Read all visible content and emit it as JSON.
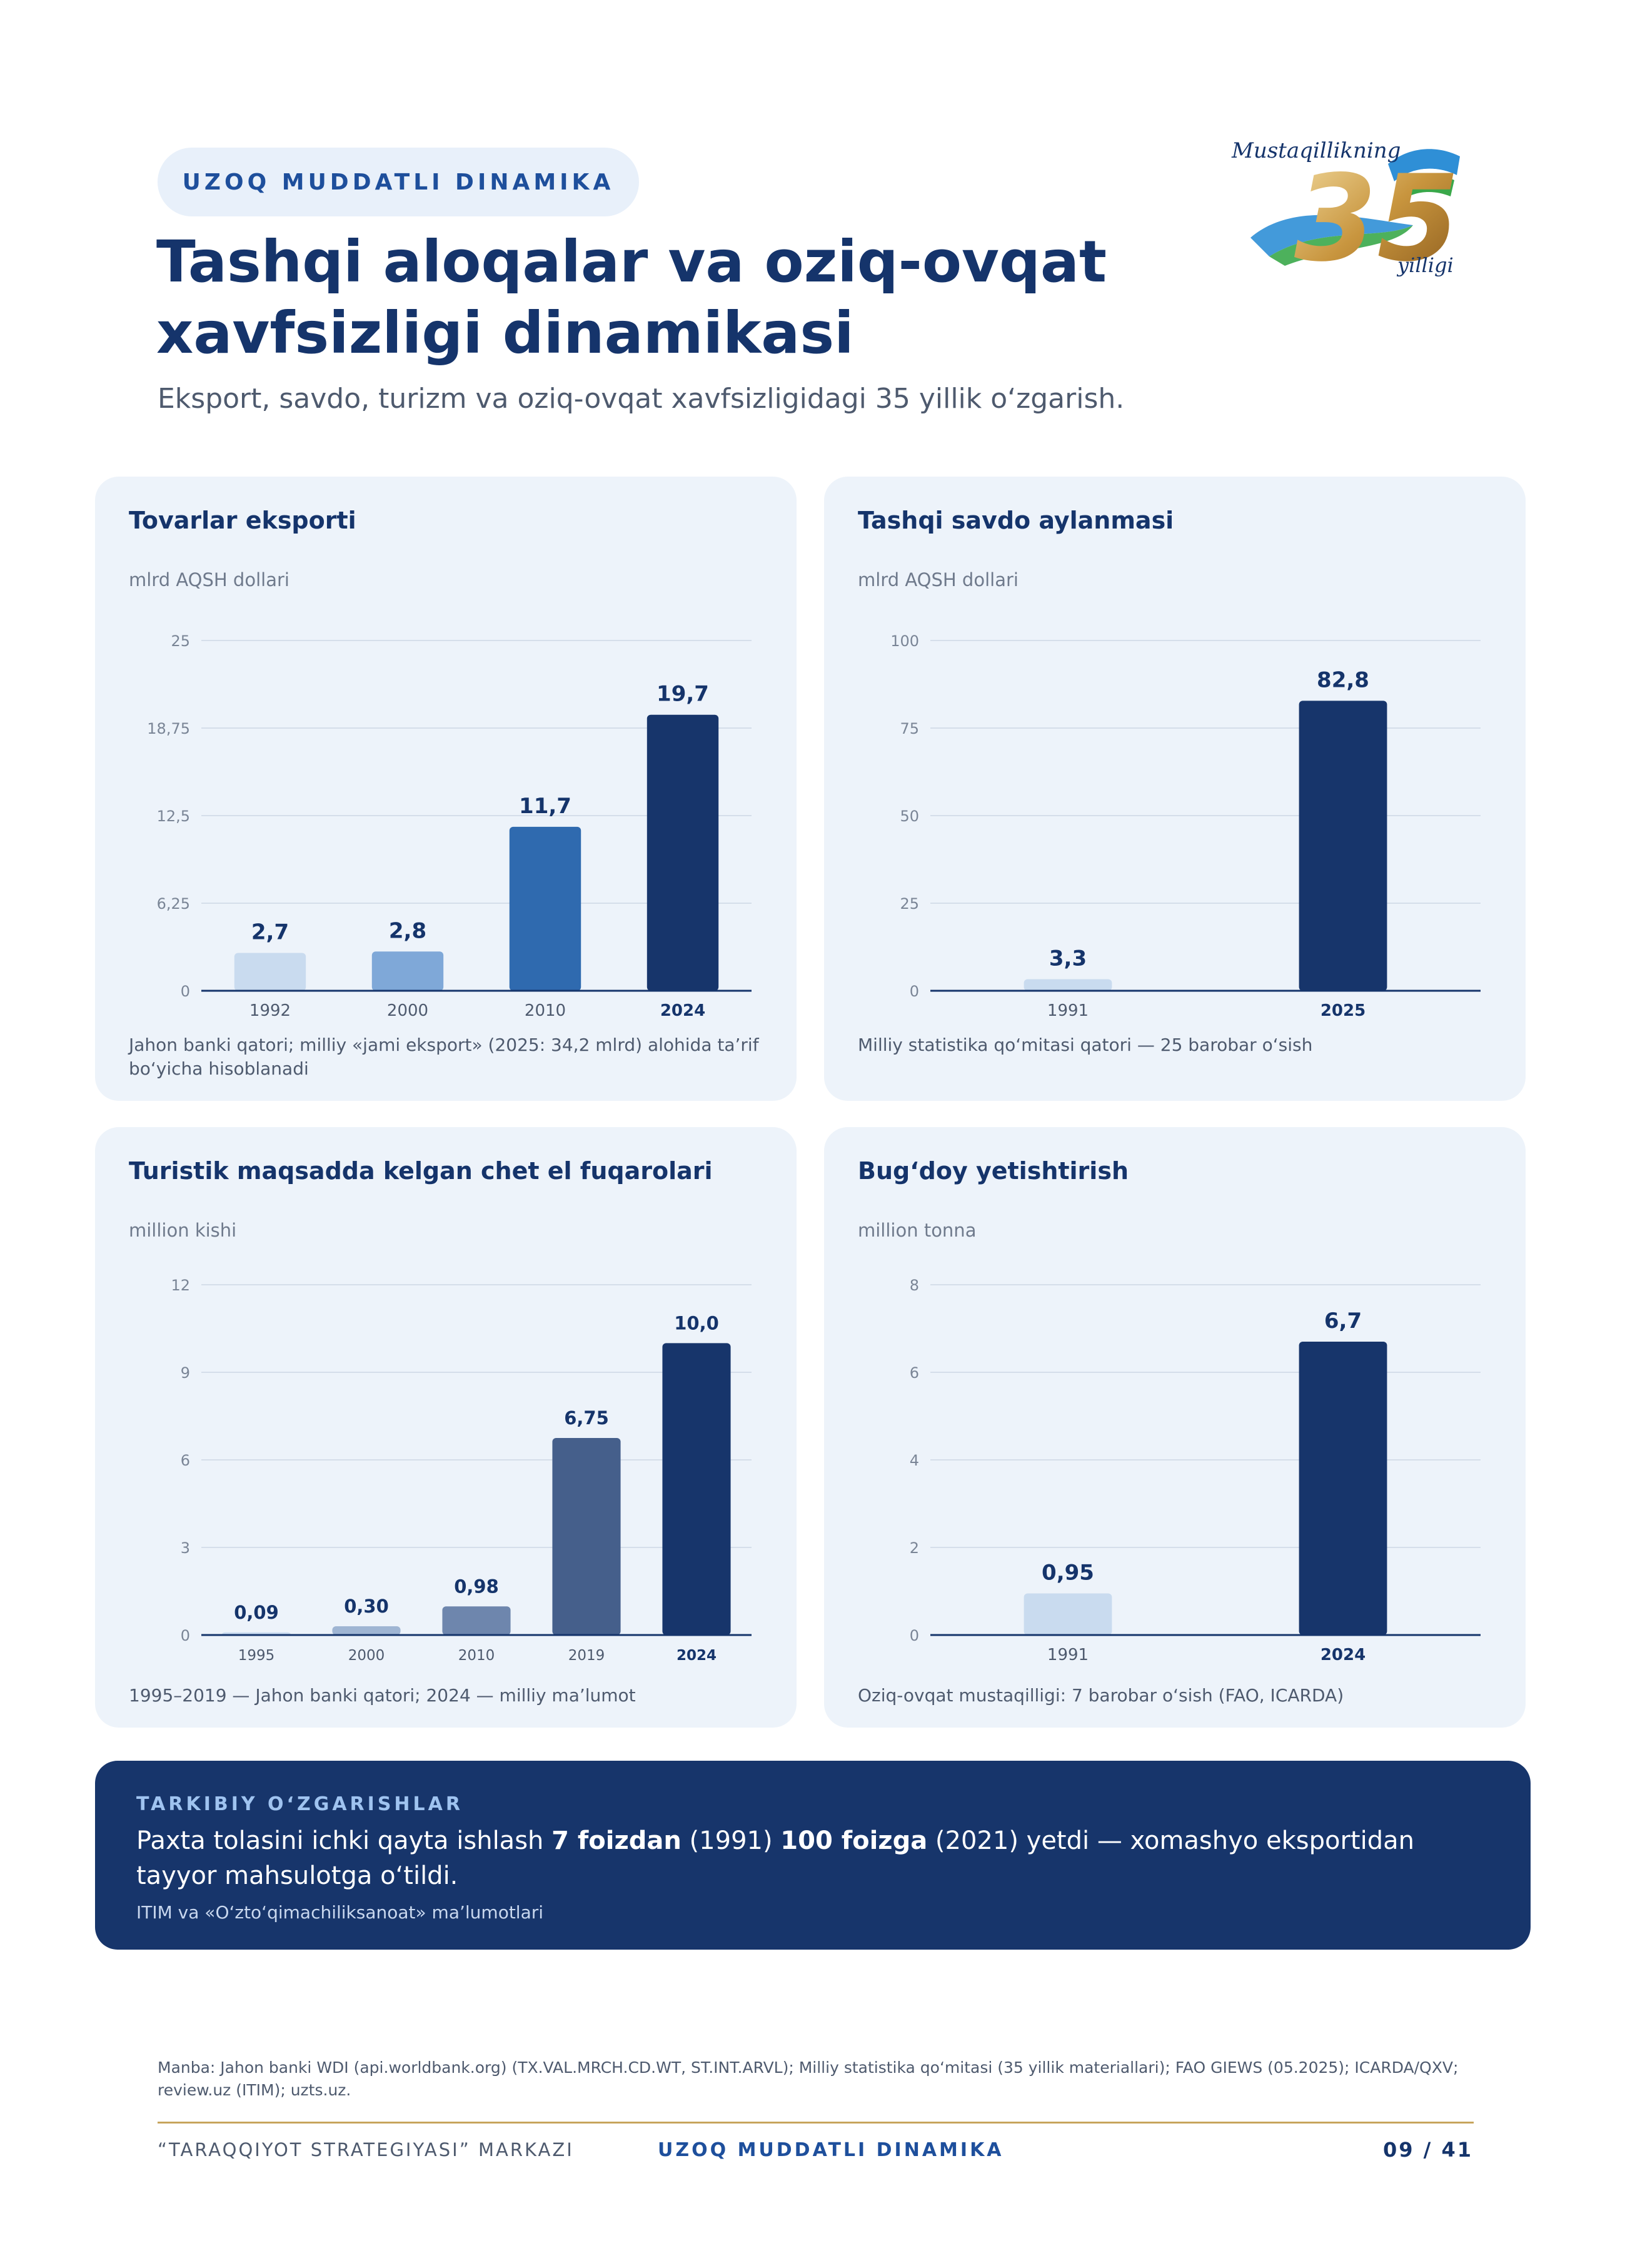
{
  "header": {
    "pill": "UZOQ MUDDATLI DINAMIKA",
    "title_line1": "Tashqi aloqalar va oziq-ovqat",
    "title_line2": "xavfsizligi dinamikasi",
    "subtitle": "Eksport, savdo, turizm va oziq-ovqat xavfsizligidagi 35 yillik o‘zgarish.",
    "logo_text_top": "Mustaqillikning",
    "logo_number": "35",
    "logo_text_bottom": "yilligi"
  },
  "chart_data": [
    {
      "type": "bar",
      "title": "Tovarlar eksporti",
      "ylabel": "mlrd AQSH dollari",
      "categories": [
        "1992",
        "2000",
        "2010",
        "2024"
      ],
      "values": [
        2.7,
        2.8,
        11.7,
        19.7
      ],
      "value_labels": [
        "2,7",
        "2,8",
        "11,7",
        "19,7"
      ],
      "yticks": [
        0,
        6.25,
        12.5,
        18.75,
        25
      ],
      "ytick_labels": [
        "0",
        "6,25",
        "12,5",
        "18,75",
        "25"
      ],
      "ylim": [
        0,
        25
      ],
      "colors": [
        "#c9dbef",
        "#7fa8d8",
        "#2f6aaf",
        "#17356b"
      ],
      "grid": true,
      "note": "Jahon banki qatori; milliy «jami eksport» (2025: 34,2 mlrd) alohida ta’rif bo‘yicha hisoblanadi"
    },
    {
      "type": "bar",
      "title": "Tashqi savdo aylanmasi",
      "ylabel": "mlrd AQSH dollari",
      "categories": [
        "1991",
        "2025"
      ],
      "values": [
        3.3,
        82.8
      ],
      "value_labels": [
        "3,3",
        "82,8"
      ],
      "yticks": [
        0,
        25,
        50,
        75,
        100
      ],
      "ytick_labels": [
        "0",
        "25",
        "50",
        "75",
        "100"
      ],
      "ylim": [
        0,
        100
      ],
      "colors": [
        "#c9dbef",
        "#17356b"
      ],
      "grid": true,
      "note": "Milliy statistika qo‘mitasi qatori — 25 barobar o‘sish"
    },
    {
      "type": "bar",
      "title": "Turistik maqsadda kelgan chet el fuqarolari",
      "ylabel": "million kishi",
      "categories": [
        "1995",
        "2000",
        "2010",
        "2019",
        "2024"
      ],
      "values": [
        0.09,
        0.3,
        0.98,
        6.75,
        10.0
      ],
      "value_labels": [
        "0,09",
        "0,30",
        "0,98",
        "6,75",
        "10,0"
      ],
      "yticks": [
        0,
        3,
        6,
        9,
        12
      ],
      "ytick_labels": [
        "0",
        "3",
        "6",
        "9",
        "12"
      ],
      "ylim": [
        0,
        12
      ],
      "colors": [
        "#c9dbef",
        "#9fb5d3",
        "#6e86ad",
        "#455f8b",
        "#17356b"
      ],
      "grid": true,
      "note": "1995–2019 — Jahon banki qatori; 2024 — milliy ma’lumot"
    },
    {
      "type": "bar",
      "title": "Bug‘doy yetishtirish",
      "ylabel": "million tonna",
      "categories": [
        "1991",
        "2024"
      ],
      "values": [
        0.95,
        6.7
      ],
      "value_labels": [
        "0,95",
        "6,7"
      ],
      "yticks": [
        0,
        2,
        4,
        6,
        8
      ],
      "ytick_labels": [
        "0",
        "2",
        "4",
        "6",
        "8"
      ],
      "ylim": [
        0,
        8
      ],
      "colors": [
        "#c9dbef",
        "#17356b"
      ],
      "grid": true,
      "note": "Oziq-ovqat mustaqilligi: 7 barobar o‘sish (FAO, ICARDA)"
    }
  ],
  "banner": {
    "label": "TARKIBIY O‘ZGARISHLAR",
    "text_a": "Paxta tolasini ichki qayta ishlash ",
    "text_b": "7 foizdan",
    "text_c": " (1991) ",
    "text_d": "100 foizga",
    "text_e": " (2021) yetdi — xomashyo eksportidan tayyor mahsulotga o‘tildi.",
    "source": "ITIM va «O‘zto‘qimachiliksanoat» ma’lumotlari"
  },
  "footer": {
    "source": "Manba: Jahon banki WDI (api.worldbank.org) (TX.VAL.MRCH.CD.WT, ST.INT.ARVL); Milliy statistika qo‘mitasi (35 yillik materiallari); FAO GIEWS (05.2025); ICARDA/QXV; review.uz (ITIM); uzts.uz.",
    "left": "“TARAQQIYOT STRATEGIYASI” MARKAZI",
    "middle": "UZOQ MUDDATLI DINAMIKA",
    "page": "09 / 41"
  }
}
